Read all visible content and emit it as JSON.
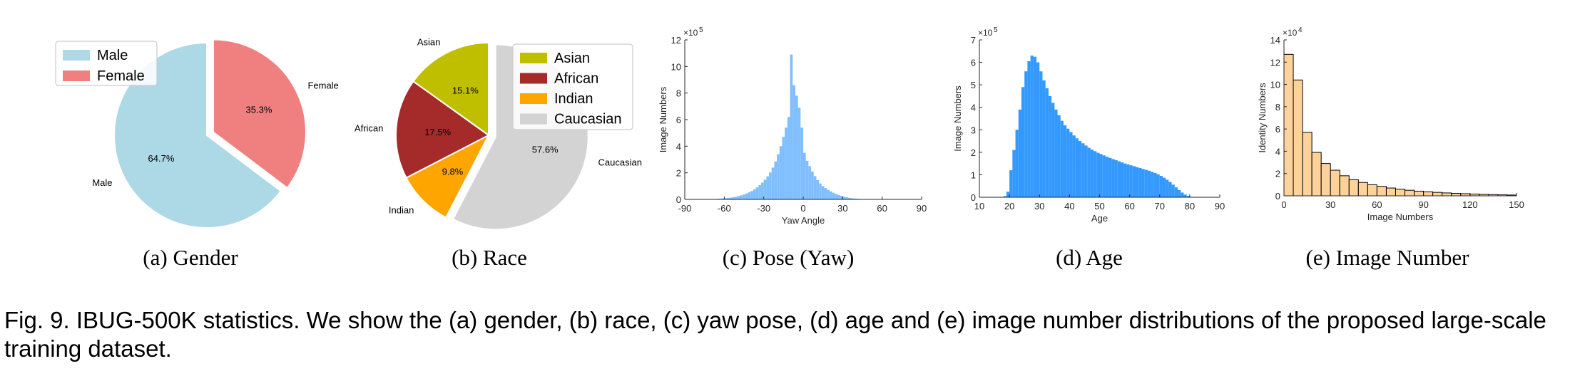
{
  "caption": "Fig. 9. IBUG-500K statistics. We show the (a) gender, (b) race, (c) yaw pose, (d) age and (e) image number distributions of the proposed large-scale training dataset.",
  "subcaptions": [
    "(a)  Gender",
    "(b)  Race",
    "(c)  Pose (Yaw)",
    "(d)  Age",
    "(e)  Image Number"
  ],
  "chart_data": [
    {
      "type": "pie",
      "title": "",
      "labels": [
        "Male",
        "Female"
      ],
      "values": [
        64.7,
        35.3
      ],
      "value_labels": [
        "64.7%",
        "35.3%"
      ],
      "colors": [
        "#add8e6",
        "#f08080"
      ],
      "legend": [
        "Male",
        "Female"
      ],
      "legend_position": "top-left"
    },
    {
      "type": "pie",
      "title": "",
      "labels": [
        "Asian",
        "African",
        "Indian",
        "Caucasian"
      ],
      "values": [
        15.1,
        17.5,
        9.8,
        57.6
      ],
      "value_labels": [
        "15.1%",
        "17.5%",
        "9.8%",
        "57.6%"
      ],
      "colors": [
        "#bfbf00",
        "#a52a2a",
        "#ffa500",
        "#d3d3d3"
      ],
      "legend": [
        "Asian",
        "African",
        "Indian",
        "Caucasian"
      ],
      "legend_position": "top-right"
    },
    {
      "type": "bar",
      "xlabel": "Yaw Angle",
      "ylabel": "Image Numbers",
      "y_multiplier": "×10",
      "y_exponent": "5",
      "xlim": [
        -90,
        90
      ],
      "ylim": [
        0,
        12
      ],
      "xticks": [
        "-90",
        "-60",
        "-30",
        "0",
        "30",
        "60",
        "90"
      ],
      "yticks": [
        "0",
        "2",
        "4",
        "6",
        "8",
        "10",
        "12"
      ],
      "bin_start": -90,
      "bin_width": 2,
      "values": [
        0.005,
        0.005,
        0.005,
        0.005,
        0.005,
        0.005,
        0.006,
        0.008,
        0.012,
        0.016,
        0.022,
        0.03,
        0.04,
        0.052,
        0.067,
        0.085,
        0.107,
        0.134,
        0.167,
        0.205,
        0.251,
        0.306,
        0.37,
        0.446,
        0.534,
        0.639,
        0.761,
        0.902,
        1.067,
        1.259,
        1.48,
        1.735,
        2.03,
        2.39,
        2.85,
        3.4,
        4.0,
        4.7,
        5.4,
        6.2,
        10.9,
        8.6,
        7.8,
        6.9,
        5.4,
        3.5,
        2.9,
        2.5,
        2.1,
        1.75,
        1.45,
        1.2,
        1.0,
        0.85,
        0.72,
        0.6,
        0.5,
        0.41,
        0.33,
        0.27,
        0.21,
        0.16,
        0.12,
        0.09,
        0.07,
        0.05,
        0.035,
        0.025,
        0.018,
        0.013,
        0.01,
        0.008,
        0.006,
        0.005,
        0.005,
        0.005,
        0.005,
        0.005,
        0.005,
        0.005,
        0.005,
        0.005,
        0.005,
        0.005,
        0.005,
        0.005,
        0.005,
        0.005,
        0.005,
        0.005
      ],
      "color": "#80bfff"
    },
    {
      "type": "bar",
      "xlabel": "Age",
      "ylabel": "Image Numbers",
      "y_multiplier": "×10",
      "y_exponent": "5",
      "xlim": [
        10,
        90
      ],
      "ylim": [
        0,
        7
      ],
      "xticks": [
        "10",
        "20",
        "30",
        "40",
        "50",
        "60",
        "70",
        "80",
        "90"
      ],
      "yticks": [
        "0",
        "1",
        "2",
        "3",
        "4",
        "5",
        "6",
        "7"
      ],
      "bin_start": 18,
      "bin_width": 1,
      "values": [
        0.05,
        0.25,
        1.2,
        2.1,
        3.0,
        3.9,
        4.9,
        5.6,
        6.05,
        6.3,
        6.25,
        6.0,
        5.6,
        5.2,
        4.85,
        4.5,
        4.2,
        3.9,
        3.65,
        3.4,
        3.2,
        3.05,
        2.9,
        2.75,
        2.62,
        2.5,
        2.4,
        2.3,
        2.2,
        2.12,
        2.05,
        1.98,
        1.92,
        1.86,
        1.8,
        1.75,
        1.7,
        1.65,
        1.6,
        1.55,
        1.5,
        1.46,
        1.42,
        1.38,
        1.34,
        1.3,
        1.26,
        1.22,
        1.18,
        1.13,
        1.08,
        1.02,
        0.95,
        0.87,
        0.78,
        0.68,
        0.56,
        0.44,
        0.32,
        0.21,
        0.12,
        0.06,
        0.02
      ],
      "color": "#3399ff"
    },
    {
      "type": "bar",
      "xlabel": "Image Numbers",
      "ylabel": "Identity Numbers",
      "y_multiplier": "×10",
      "y_exponent": "4",
      "xlim": [
        0,
        150
      ],
      "ylim": [
        0,
        14
      ],
      "xticks": [
        "0",
        "30",
        "60",
        "90",
        "120",
        "150"
      ],
      "yticks": [
        "0",
        "2",
        "4",
        "6",
        "8",
        "10",
        "12",
        "14"
      ],
      "bin_start": 0,
      "bin_width": 6,
      "values": [
        12.7,
        10.4,
        5.7,
        3.9,
        2.9,
        2.3,
        1.8,
        1.45,
        1.2,
        1.0,
        0.85,
        0.7,
        0.6,
        0.5,
        0.42,
        0.36,
        0.31,
        0.26,
        0.22,
        0.19,
        0.16,
        0.13,
        0.11,
        0.09,
        0.07
      ],
      "color": "#ffd29a",
      "edge_color": "#000000"
    }
  ]
}
